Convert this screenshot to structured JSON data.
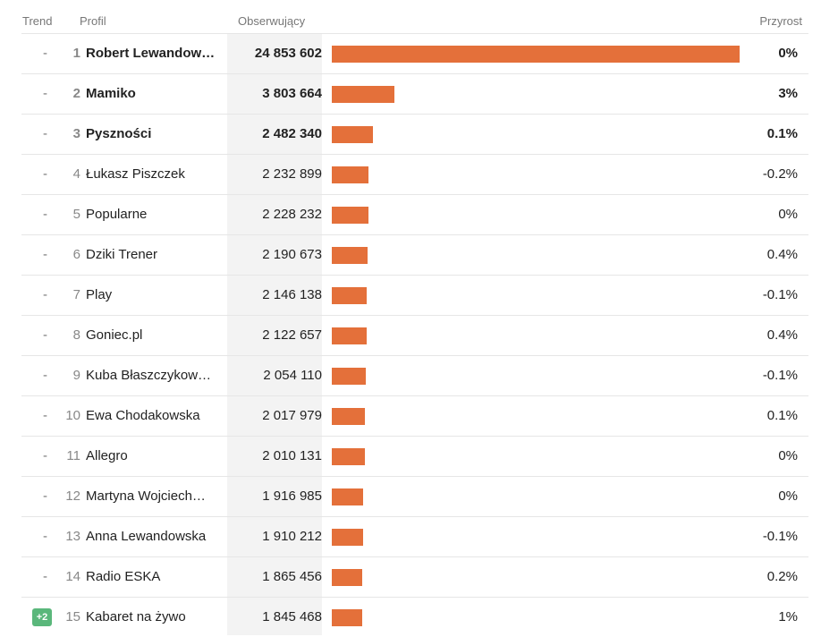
{
  "header": {
    "trend": "Trend",
    "profile": "Profil",
    "followers": "Obserwujący",
    "growth": "Przyrost"
  },
  "colors": {
    "bar": "#e4703a",
    "badge": "#5ab77b"
  },
  "max_followers": 24853602,
  "rows": [
    {
      "trend": "-",
      "rank": "1",
      "name": "Robert Lewandow…",
      "followers": "24 853 602",
      "value": 24853602,
      "growth": "0%",
      "bold": true
    },
    {
      "trend": "-",
      "rank": "2",
      "name": "Mamiko",
      "followers": "3 803 664",
      "value": 3803664,
      "growth": "3%",
      "bold": true
    },
    {
      "trend": "-",
      "rank": "3",
      "name": "Pyszności",
      "followers": "2 482 340",
      "value": 2482340,
      "growth": "0.1%",
      "bold": true
    },
    {
      "trend": "-",
      "rank": "4",
      "name": "Łukasz Piszczek",
      "followers": "2 232 899",
      "value": 2232899,
      "growth": "-0.2%",
      "bold": false
    },
    {
      "trend": "-",
      "rank": "5",
      "name": "Popularne",
      "followers": "2 228 232",
      "value": 2228232,
      "growth": "0%",
      "bold": false
    },
    {
      "trend": "-",
      "rank": "6",
      "name": "Dziki Trener",
      "followers": "2 190 673",
      "value": 2190673,
      "growth": "0.4%",
      "bold": false
    },
    {
      "trend": "-",
      "rank": "7",
      "name": "Play",
      "followers": "2 146 138",
      "value": 2146138,
      "growth": "-0.1%",
      "bold": false
    },
    {
      "trend": "-",
      "rank": "8",
      "name": "Goniec.pl",
      "followers": "2 122 657",
      "value": 2122657,
      "growth": "0.4%",
      "bold": false
    },
    {
      "trend": "-",
      "rank": "9",
      "name": "Kuba Błaszczykow…",
      "followers": "2 054 110",
      "value": 2054110,
      "growth": "-0.1%",
      "bold": false
    },
    {
      "trend": "-",
      "rank": "10",
      "name": "Ewa Chodakowska",
      "followers": "2 017 979",
      "value": 2017979,
      "growth": "0.1%",
      "bold": false
    },
    {
      "trend": "-",
      "rank": "11",
      "name": "Allegro",
      "followers": "2 010 131",
      "value": 2010131,
      "growth": "0%",
      "bold": false
    },
    {
      "trend": "-",
      "rank": "12",
      "name": "Martyna Wojciech…",
      "followers": "1 916 985",
      "value": 1916985,
      "growth": "0%",
      "bold": false
    },
    {
      "trend": "-",
      "rank": "13",
      "name": "Anna Lewandowska",
      "followers": "1 910 212",
      "value": 1910212,
      "growth": "-0.1%",
      "bold": false
    },
    {
      "trend": "-",
      "rank": "14",
      "name": "Radio ESKA",
      "followers": "1 865 456",
      "value": 1865456,
      "growth": "0.2%",
      "bold": false
    },
    {
      "trend": "+2",
      "rank": "15",
      "name": "Kabaret na żywo",
      "followers": "1 845 468",
      "value": 1845468,
      "growth": "1%",
      "bold": false
    }
  ]
}
